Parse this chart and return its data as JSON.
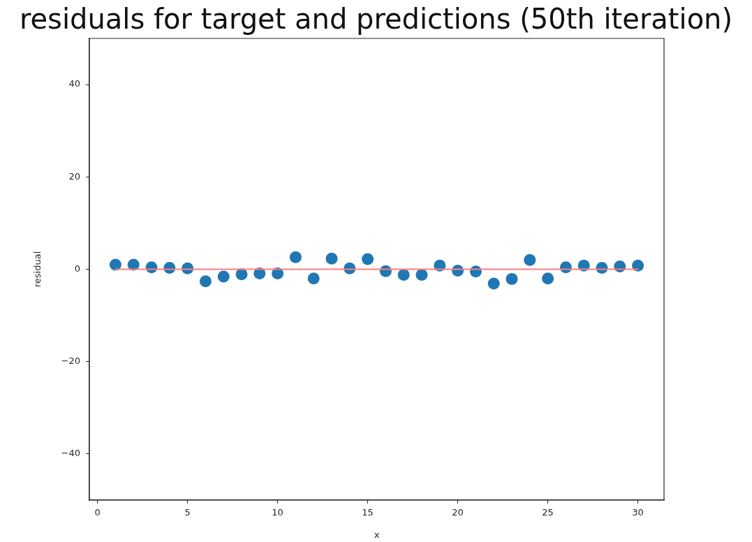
{
  "chart_data": {
    "type": "scatter",
    "title": "residuals for target and predictions (50th iteration)",
    "xlabel": "x",
    "ylabel": "residual",
    "xlim": [
      -0.45,
      31.45
    ],
    "xticks": [
      0,
      5,
      10,
      15,
      20,
      25,
      30
    ],
    "ylim": [
      -50,
      50
    ],
    "yticks": [
      {
        "value": -40,
        "label": "−40"
      },
      {
        "value": -20,
        "label": "−20"
      },
      0,
      20,
      40
    ],
    "grid": false,
    "marker": "circle",
    "series": [
      {
        "type": "scatter",
        "color": "#1f77b4",
        "x": [
          1,
          2,
          3,
          4,
          5,
          6,
          7,
          8,
          9,
          10,
          11,
          12,
          13,
          14,
          15,
          16,
          17,
          18,
          19,
          20,
          21,
          22,
          23,
          24,
          25,
          26,
          27,
          28,
          29,
          30
        ],
        "values": [
          1.0,
          1.0,
          0.4,
          0.3,
          0.2,
          -2.6,
          -1.6,
          -1.1,
          -0.9,
          -0.9,
          2.6,
          -2.0,
          2.3,
          0.2,
          2.2,
          -0.4,
          -1.2,
          -1.2,
          0.8,
          -0.3,
          -0.5,
          -3.1,
          -2.1,
          2.0,
          -2.0,
          0.4,
          0.8,
          0.3,
          0.6,
          0.8
        ]
      },
      {
        "type": "line",
        "color": "#ff7f7f",
        "x": [
          1,
          30
        ],
        "values": [
          0,
          0
        ],
        "marker": "none"
      }
    ]
  }
}
